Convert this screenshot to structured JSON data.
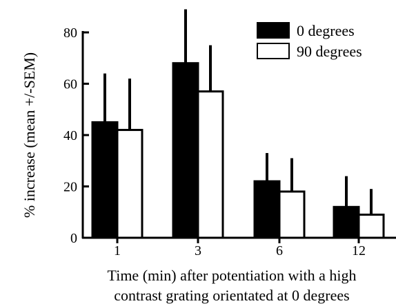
{
  "chart_data": {
    "type": "bar",
    "title": "",
    "xlabel_lines": [
      "Time (min) after potentiation with a high",
      "contrast grating orientated at 0 degrees"
    ],
    "ylabel": "% increase (mean +/-SEM)",
    "categories": [
      "1",
      "3",
      "6",
      "12"
    ],
    "ylim": [
      0,
      80
    ],
    "yticks": [
      0,
      20,
      40,
      60,
      80
    ],
    "series": [
      {
        "name": "0 degrees",
        "fill": "#000000",
        "values": [
          45,
          68,
          22,
          12
        ],
        "sem": [
          19,
          21,
          11,
          12
        ]
      },
      {
        "name": "90 degrees",
        "fill": "#ffffff",
        "values": [
          42,
          57,
          18,
          9
        ],
        "sem": [
          20,
          18,
          13,
          10
        ]
      }
    ],
    "legend_position": "top-right",
    "grid": false
  }
}
